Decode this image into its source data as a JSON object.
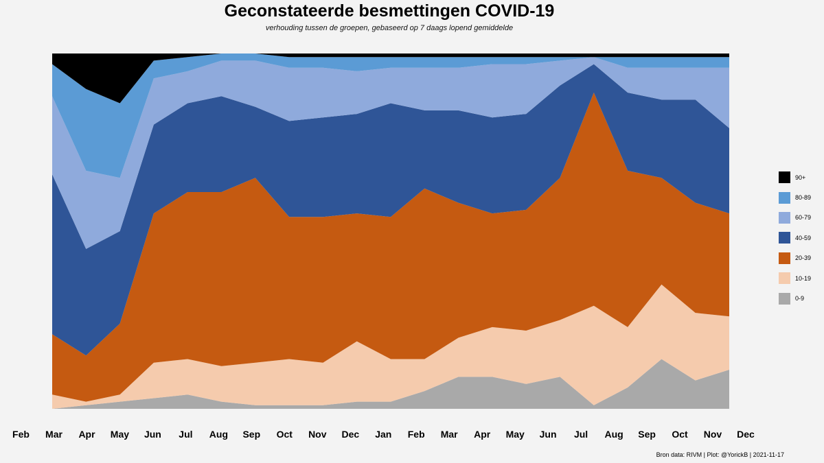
{
  "title": "Geconstateerde besmettingen COVID-19",
  "subtitle": "verhouding tussen de groepen, gebaseerd op 7 daags lopend gemiddelde",
  "caption": "Bron data: RIVM  | Plot: @YorickB |  2021-11-17",
  "chart_data": {
    "type": "area",
    "stacked": true,
    "normalized": true,
    "x": [
      "Mar",
      "Apr",
      "May",
      "Jun",
      "Jul",
      "Aug",
      "Sep",
      "Oct",
      "Nov",
      "Dec",
      "Jan",
      "Feb",
      "Mar",
      "Apr",
      "May",
      "Jun",
      "Jul",
      "Aug",
      "Sep",
      "Oct",
      "Nov"
    ],
    "xticks": [
      "Feb",
      "Mar",
      "Apr",
      "May",
      "Jun",
      "Jul",
      "Aug",
      "Sep",
      "Oct",
      "Nov",
      "Dec",
      "Jan",
      "Feb",
      "Mar",
      "Apr",
      "May",
      "Jun",
      "Jul",
      "Aug",
      "Sep",
      "Oct",
      "Nov",
      "Dec"
    ],
    "ylim": [
      0,
      1
    ],
    "legend_position": "right",
    "series": [
      {
        "name": "0-9",
        "color": "#a9a9a9",
        "values": [
          0.0,
          0.01,
          0.02,
          0.03,
          0.04,
          0.02,
          0.01,
          0.01,
          0.01,
          0.02,
          0.02,
          0.05,
          0.09,
          0.09,
          0.07,
          0.09,
          0.01,
          0.06,
          0.14,
          0.08,
          0.11
        ]
      },
      {
        "name": "10-19",
        "color": "#f5cbad",
        "values": [
          0.04,
          0.01,
          0.02,
          0.1,
          0.1,
          0.1,
          0.12,
          0.13,
          0.12,
          0.17,
          0.12,
          0.09,
          0.11,
          0.14,
          0.15,
          0.16,
          0.28,
          0.17,
          0.21,
          0.19,
          0.15
        ]
      },
      {
        "name": "20-39",
        "color": "#c55a11",
        "values": [
          0.17,
          0.13,
          0.2,
          0.42,
          0.47,
          0.49,
          0.52,
          0.4,
          0.41,
          0.36,
          0.4,
          0.48,
          0.38,
          0.32,
          0.34,
          0.4,
          0.6,
          0.44,
          0.3,
          0.31,
          0.29
        ]
      },
      {
        "name": "40-59",
        "color": "#2f5597",
        "values": [
          0.45,
          0.3,
          0.26,
          0.25,
          0.25,
          0.27,
          0.2,
          0.27,
          0.28,
          0.28,
          0.32,
          0.22,
          0.26,
          0.27,
          0.27,
          0.26,
          0.08,
          0.22,
          0.22,
          0.29,
          0.24
        ]
      },
      {
        "name": "60-79",
        "color": "#8faadc",
        "values": [
          0.22,
          0.22,
          0.15,
          0.13,
          0.09,
          0.1,
          0.13,
          0.15,
          0.14,
          0.12,
          0.1,
          0.12,
          0.12,
          0.15,
          0.14,
          0.07,
          0.02,
          0.07,
          0.09,
          0.09,
          0.17
        ]
      },
      {
        "name": "80-89",
        "color": "#5b9bd5",
        "values": [
          0.09,
          0.23,
          0.21,
          0.05,
          0.04,
          0.02,
          0.02,
          0.03,
          0.03,
          0.04,
          0.03,
          0.03,
          0.03,
          0.02,
          0.02,
          0.01,
          0.0,
          0.03,
          0.03,
          0.03,
          0.03
        ]
      },
      {
        "name": "90+",
        "color": "#000000",
        "values": [
          0.03,
          0.1,
          0.14,
          0.02,
          0.01,
          0.0,
          0.0,
          0.01,
          0.01,
          0.01,
          0.01,
          0.01,
          0.01,
          0.01,
          0.01,
          0.01,
          0.01,
          0.01,
          0.01,
          0.01,
          0.01
        ]
      }
    ]
  }
}
